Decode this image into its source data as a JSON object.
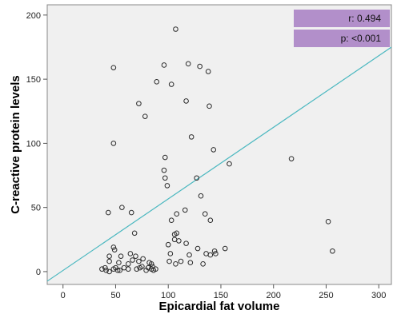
{
  "chart_data": {
    "type": "scatter",
    "xlabel": "Epicardial fat volume",
    "ylabel": "C-reactive protein levels",
    "xlim": [
      -15,
      312
    ],
    "ylim": [
      -10,
      208
    ],
    "xticks": [
      0,
      50,
      100,
      150,
      200,
      250,
      300
    ],
    "yticks": [
      0,
      50,
      100,
      150,
      200
    ],
    "grid": false,
    "annotations": {
      "r": "r: 0.494",
      "p": "p: <0.001"
    },
    "colors": {
      "plot_background": "#f0f0f0",
      "fit_line": "#4bb8c0",
      "annotation_box": "#b28fca",
      "marker_edge": "#2b2b2b"
    },
    "fit_line": {
      "slope": 0.558,
      "intercept": 0.9
    },
    "points": [
      [
        107,
        189
      ],
      [
        48,
        159
      ],
      [
        96,
        161
      ],
      [
        119,
        162
      ],
      [
        130,
        160
      ],
      [
        138,
        156
      ],
      [
        89,
        148
      ],
      [
        103,
        146
      ],
      [
        72,
        131
      ],
      [
        117,
        133
      ],
      [
        139,
        129
      ],
      [
        78,
        121
      ],
      [
        48,
        100
      ],
      [
        122,
        105
      ],
      [
        143,
        95
      ],
      [
        97,
        89
      ],
      [
        217,
        88
      ],
      [
        158,
        84
      ],
      [
        96,
        79
      ],
      [
        97,
        73
      ],
      [
        127,
        73
      ],
      [
        99,
        67
      ],
      [
        131,
        59
      ],
      [
        56,
        50
      ],
      [
        43,
        46
      ],
      [
        65,
        46
      ],
      [
        108,
        45
      ],
      [
        116,
        48
      ],
      [
        135,
        45
      ],
      [
        140,
        40
      ],
      [
        103,
        40
      ],
      [
        252,
        39
      ],
      [
        106,
        29
      ],
      [
        108,
        30
      ],
      [
        68,
        30
      ],
      [
        106,
        25
      ],
      [
        110,
        24
      ],
      [
        117,
        22
      ],
      [
        100,
        21
      ],
      [
        48,
        19
      ],
      [
        49,
        17
      ],
      [
        64,
        14
      ],
      [
        69,
        12
      ],
      [
        256,
        16
      ],
      [
        128,
        18
      ],
      [
        154,
        18
      ],
      [
        144,
        16
      ],
      [
        102,
        14
      ],
      [
        145,
        14
      ],
      [
        136,
        14
      ],
      [
        140,
        13
      ],
      [
        120,
        13
      ],
      [
        44,
        12
      ],
      [
        55,
        12
      ],
      [
        76,
        10
      ],
      [
        44,
        8
      ],
      [
        53,
        7
      ],
      [
        62,
        6
      ],
      [
        66,
        9
      ],
      [
        72,
        8
      ],
      [
        75,
        4
      ],
      [
        82,
        7
      ],
      [
        84,
        6
      ],
      [
        85,
        4
      ],
      [
        88,
        2
      ],
      [
        101,
        8
      ],
      [
        107,
        6
      ],
      [
        112,
        8
      ],
      [
        121,
        7
      ],
      [
        133,
        6
      ],
      [
        37,
        2
      ],
      [
        40,
        3
      ],
      [
        41,
        1
      ],
      [
        44,
        0
      ],
      [
        48,
        2
      ],
      [
        50,
        3
      ],
      [
        52,
        1
      ],
      [
        58,
        3
      ],
      [
        62,
        2
      ],
      [
        70,
        2
      ],
      [
        73,
        3
      ],
      [
        79,
        1
      ],
      [
        81,
        3
      ],
      [
        84,
        2
      ],
      [
        86,
        1
      ],
      [
        54,
        1
      ]
    ]
  }
}
